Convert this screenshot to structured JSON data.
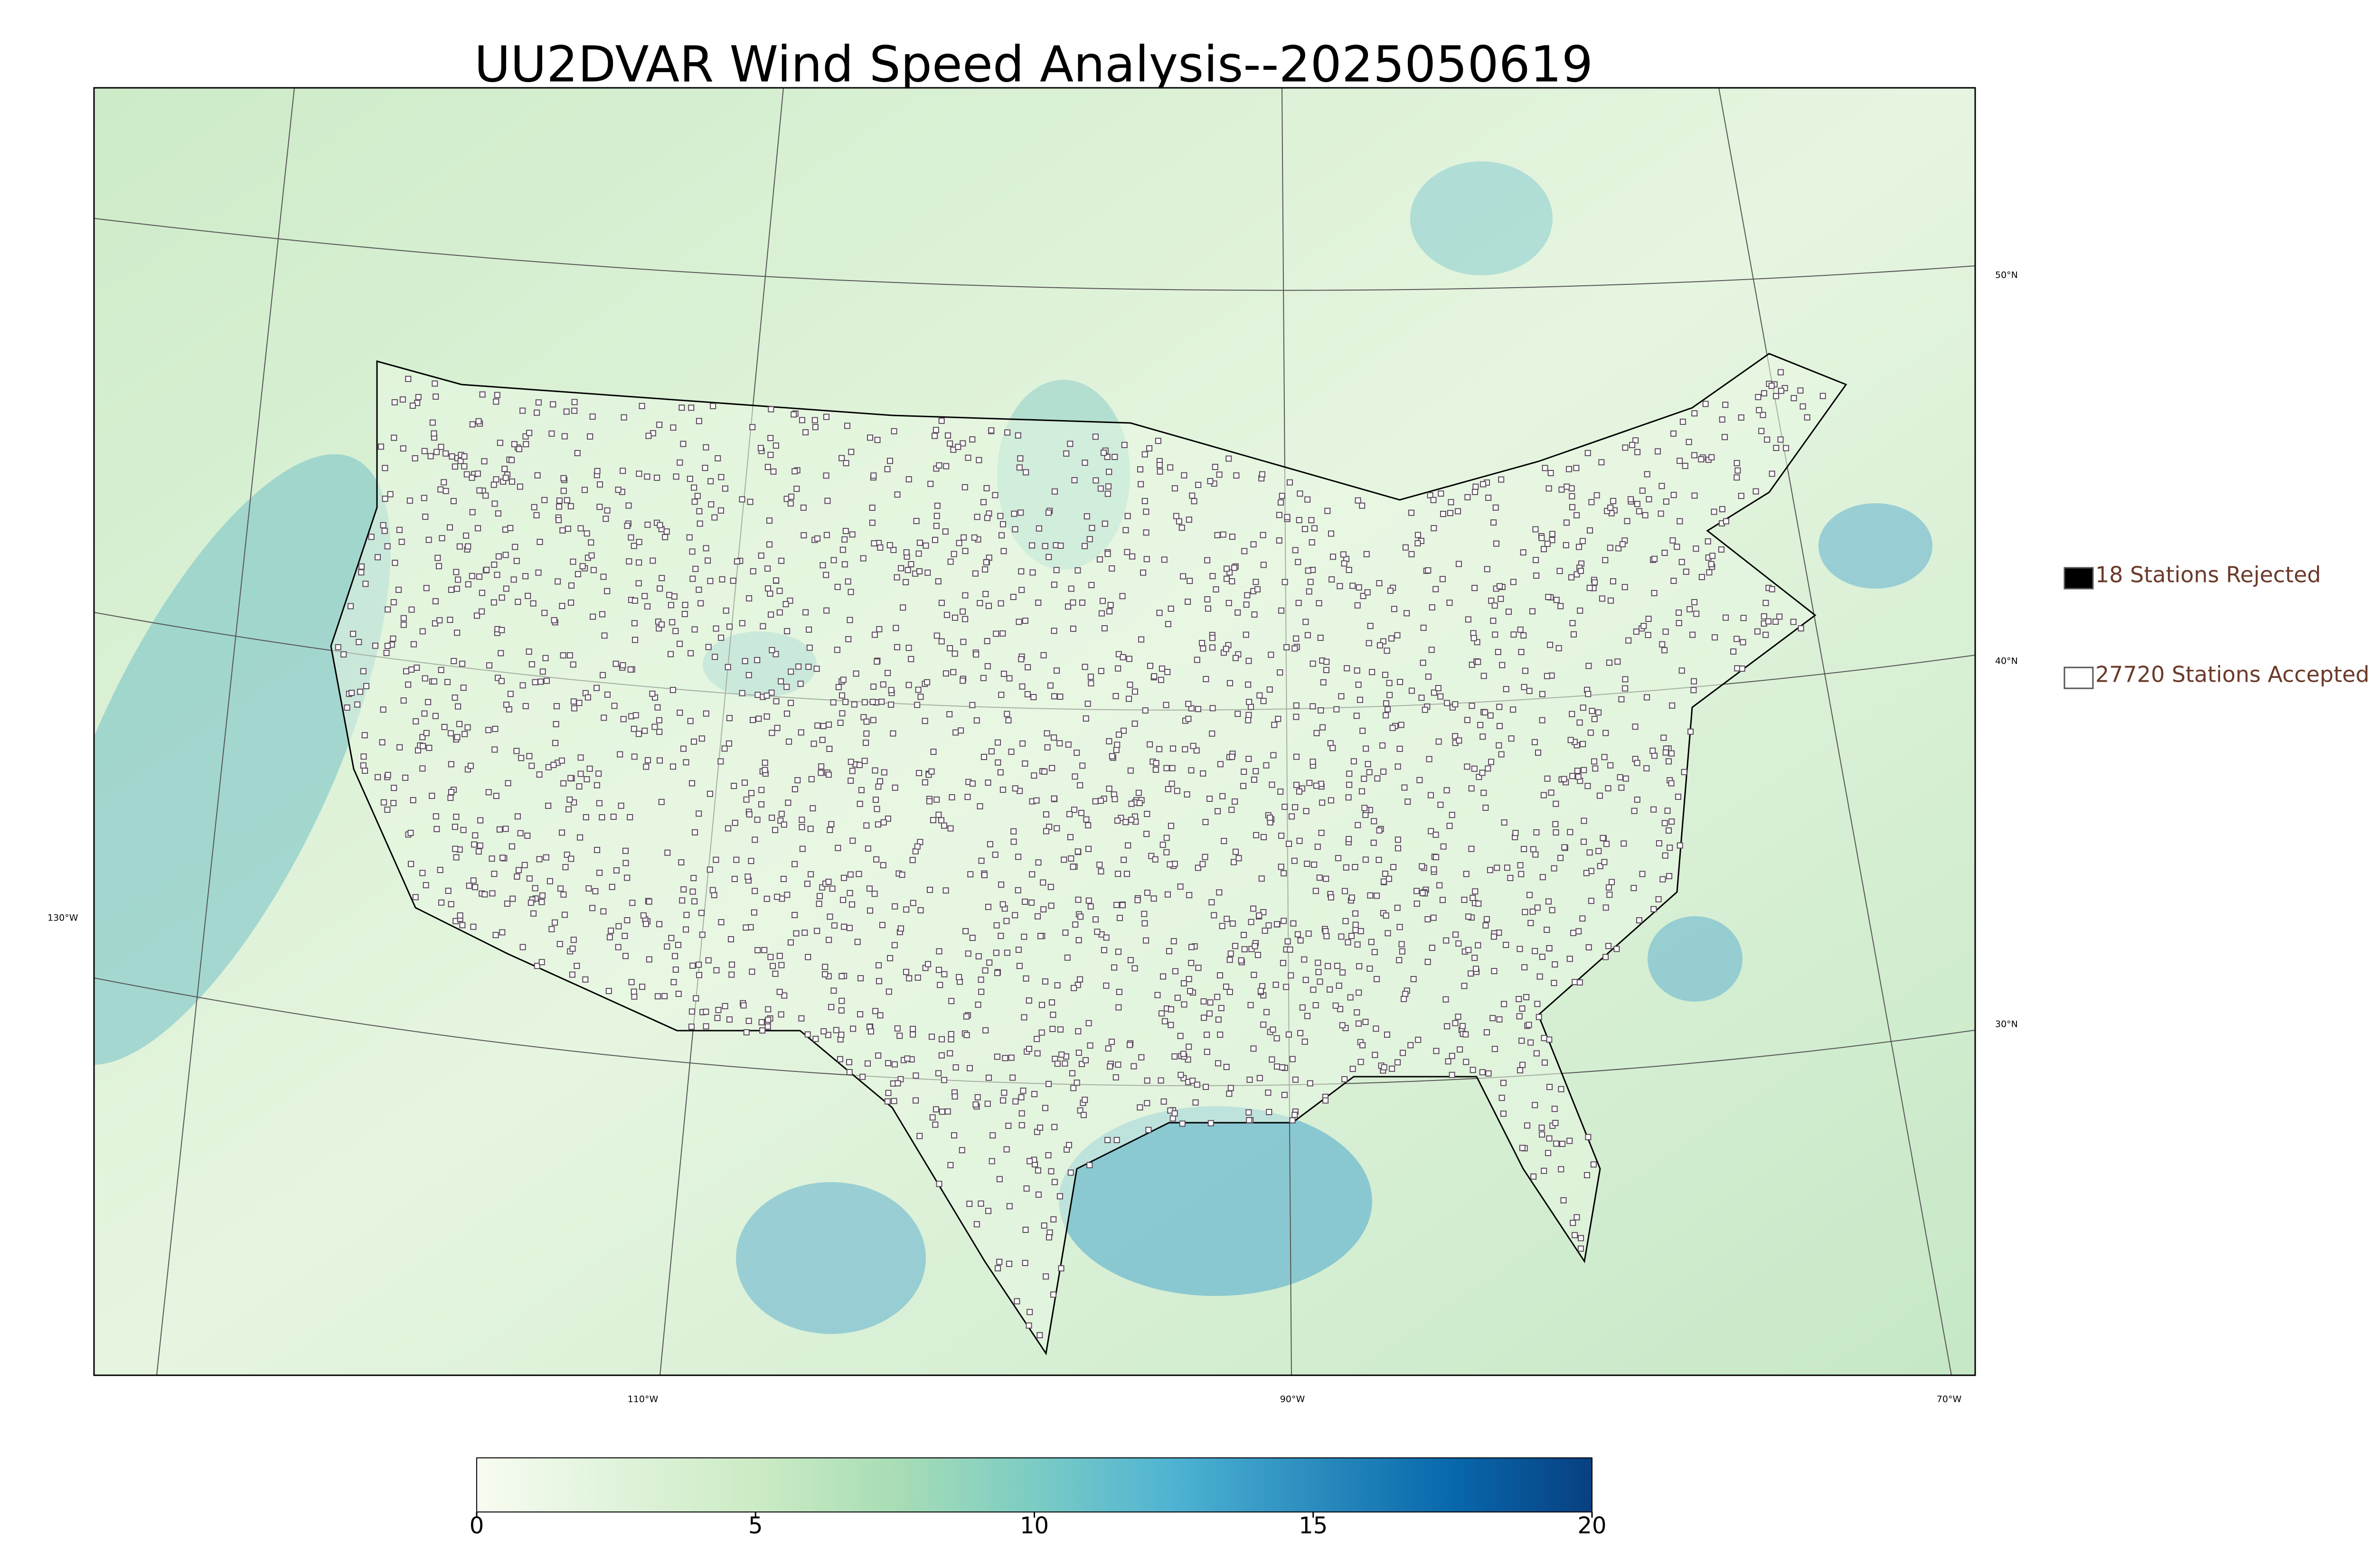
{
  "title": "UU2DVAR Wind Speed Analysis--2025050619",
  "legend": [
    {
      "label": "18 Stations Rejected",
      "color": "#000000"
    },
    {
      "label": "27720 Stations Accepted",
      "color": "#ffffff"
    }
  ],
  "lat_labels": [
    "50°N",
    "40°N",
    "30°N"
  ],
  "lon_labels": [
    "130°W",
    "110°W",
    "90°W",
    "70°W"
  ],
  "colorbar": {
    "lim": [
      0,
      20
    ],
    "ticks": [
      0,
      5,
      10,
      15,
      20
    ],
    "colors": [
      "#f7fcf0",
      "#e0f3db",
      "#ccebc5",
      "#a8ddb5",
      "#7bccc4",
      "#4eb3d3",
      "#2b8cbe",
      "#0868ac",
      "#084081"
    ]
  }
}
